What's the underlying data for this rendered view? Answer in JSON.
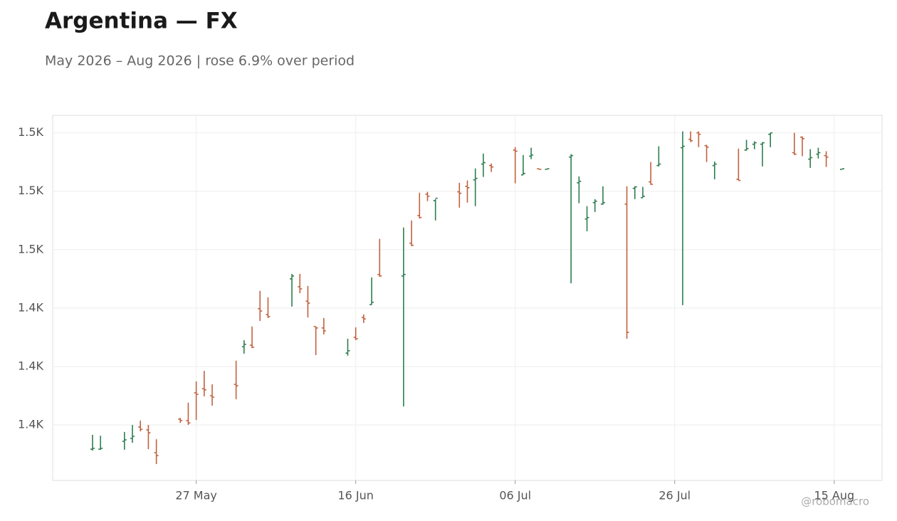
{
  "chart_data": {
    "type": "ohlc",
    "title": "Argentina — FX",
    "subtitle": "May 2026 – Aug 2026 | rose 6.9% over period",
    "watermark": "@robomacro",
    "up_color": "#2e7d4f",
    "down_color": "#c0623f",
    "grid": true,
    "x": [
      "2026-05-14",
      "2026-05-15",
      "2026-05-18",
      "2026-05-19",
      "2026-05-20",
      "2026-05-21",
      "2026-05-22",
      "2026-05-25",
      "2026-05-26",
      "2026-05-27",
      "2026-05-28",
      "2026-05-29",
      "2026-06-01",
      "2026-06-02",
      "2026-06-03",
      "2026-06-04",
      "2026-06-05",
      "2026-06-08",
      "2026-06-09",
      "2026-06-10",
      "2026-06-11",
      "2026-06-12",
      "2026-06-15",
      "2026-06-16",
      "2026-06-17",
      "2026-06-18",
      "2026-06-19",
      "2026-06-22",
      "2026-06-23",
      "2026-06-24",
      "2026-06-25",
      "2026-06-26",
      "2026-06-29",
      "2026-06-30",
      "2026-07-01",
      "2026-07-02",
      "2026-07-03",
      "2026-07-06",
      "2026-07-07",
      "2026-07-08",
      "2026-07-09",
      "2026-07-10",
      "2026-07-13",
      "2026-07-14",
      "2026-07-15",
      "2026-07-16",
      "2026-07-17",
      "2026-07-20",
      "2026-07-21",
      "2026-07-22",
      "2026-07-23",
      "2026-07-24",
      "2026-07-27",
      "2026-07-28",
      "2026-07-29",
      "2026-07-30",
      "2026-07-31",
      "2026-08-03",
      "2026-08-04",
      "2026-08-05",
      "2026-08-06",
      "2026-08-07",
      "2026-08-10",
      "2026-08-11",
      "2026-08-12",
      "2026-08-13",
      "2026-08-14",
      "2026-08-16"
    ],
    "open": [
      1391.7,
      1391.7,
      1394.4,
      1395.4,
      1399.3,
      1398.3,
      1390.5,
      1402.0,
      1401.5,
      1411.0,
      1412.4,
      1410.0,
      1413.9,
      1426.8,
      1427.3,
      1439.8,
      1437.8,
      1450.0,
      1447.3,
      1442.4,
      1433.7,
      1433.2,
      1424.6,
      1430.0,
      1436.8,
      1441.2,
      1451.5,
      1451.0,
      1462.2,
      1471.7,
      1479.0,
      1476.8,
      1479.8,
      1481.7,
      1483.9,
      1489.3,
      1488.8,
      1494.1,
      1485.6,
      1492.0,
      1487.7,
      1487.5,
      1491.7,
      1482.9,
      1470.5,
      1476.1,
      1475.6,
      1475.6,
      1481.0,
      1477.8,
      1483.2,
      1488.8,
      1494.9,
      1497.8,
      1500.0,
      1495.6,
      1488.8,
      1484.1,
      1494.1,
      1496.1,
      1496.1,
      1499.5,
      1493.2,
      1498.5,
      1491.0,
      1492.7,
      1492.2,
      1487.5
    ],
    "high": [
      1396.6,
      1396.3,
      1397.6,
      1400.0,
      1401.5,
      1400.0,
      1395.1,
      1402.4,
      1407.6,
      1414.9,
      1418.5,
      1413.9,
      1422.0,
      1429.0,
      1433.7,
      1445.9,
      1443.7,
      1451.7,
      1451.7,
      1447.6,
      1433.7,
      1436.6,
      1429.5,
      1433.4,
      1437.8,
      1450.5,
      1463.7,
      1467.6,
      1470.0,
      1479.5,
      1479.8,
      1477.3,
      1482.9,
      1483.7,
      1487.8,
      1492.9,
      1489.5,
      1495.1,
      1492.4,
      1494.9,
      1487.7,
      1487.7,
      1492.7,
      1485.1,
      1474.9,
      1477.3,
      1481.7,
      1481.7,
      1481.7,
      1481.5,
      1490.0,
      1495.4,
      1500.5,
      1500.5,
      1500.5,
      1495.9,
      1490.2,
      1494.6,
      1497.6,
      1497.1,
      1496.8,
      1500.0,
      1500.0,
      1498.8,
      1494.4,
      1494.9,
      1493.7,
      1487.7
    ],
    "low": [
      1391.2,
      1391.5,
      1391.5,
      1393.9,
      1397.8,
      1391.7,
      1386.6,
      1400.7,
      1400.0,
      1401.7,
      1409.8,
      1406.6,
      1408.8,
      1424.4,
      1426.3,
      1435.6,
      1436.6,
      1440.5,
      1445.1,
      1436.8,
      1423.9,
      1431.0,
      1423.7,
      1429.0,
      1434.9,
      1441.2,
      1450.7,
      1406.3,
      1461.2,
      1470.7,
      1476.6,
      1470.0,
      1474.4,
      1476.1,
      1474.9,
      1484.9,
      1486.6,
      1482.7,
      1485.6,
      1491.0,
      1487.5,
      1487.5,
      1448.5,
      1475.9,
      1466.3,
      1472.9,
      1475.4,
      1429.5,
      1477.3,
      1477.8,
      1482.2,
      1488.5,
      1441.0,
      1496.8,
      1495.1,
      1490.0,
      1484.1,
      1483.7,
      1493.9,
      1494.4,
      1488.5,
      1495.1,
      1492.4,
      1492.0,
      1488.0,
      1491.2,
      1488.3,
      1487.5
    ],
    "close": [
      1392.0,
      1392.0,
      1394.9,
      1396.1,
      1398.5,
      1397.3,
      1389.5,
      1401.5,
      1400.7,
      1410.5,
      1412.0,
      1409.5,
      1413.4,
      1427.6,
      1426.6,
      1439.0,
      1437.1,
      1451.0,
      1446.6,
      1441.7,
      1433.2,
      1432.2,
      1425.4,
      1429.5,
      1436.3,
      1442.0,
      1451.0,
      1451.5,
      1461.5,
      1471.0,
      1478.3,
      1477.6,
      1479.3,
      1481.2,
      1484.4,
      1489.8,
      1488.3,
      1493.7,
      1486.1,
      1492.4,
      1487.5,
      1487.7,
      1492.2,
      1483.4,
      1471.0,
      1476.6,
      1476.1,
      1431.7,
      1481.5,
      1478.3,
      1482.4,
      1489.3,
      1495.4,
      1497.3,
      1499.5,
      1495.1,
      1489.3,
      1483.7,
      1494.6,
      1496.6,
      1496.6,
      1500.0,
      1492.7,
      1498.0,
      1491.5,
      1493.2,
      1491.7,
      1487.7
    ],
    "xlim": [
      "2026-05-09",
      "2026-08-21"
    ],
    "xticks": [
      {
        "value": "2026-05-27",
        "label": "27 May"
      },
      {
        "value": "2026-06-16",
        "label": "16 Jun"
      },
      {
        "value": "2026-07-06",
        "label": "06 Jul"
      },
      {
        "value": "2026-07-26",
        "label": "26 Jul"
      },
      {
        "value": "2026-08-15",
        "label": "15 Aug"
      }
    ],
    "ylim": [
      1381,
      1506
    ],
    "yticks": [
      {
        "value": 1400,
        "label": "1.4K"
      },
      {
        "value": 1420,
        "label": "1.4K"
      },
      {
        "value": 1440,
        "label": "1.4K"
      },
      {
        "value": 1460,
        "label": "1.5K"
      },
      {
        "value": 1480,
        "label": "1.5K"
      },
      {
        "value": 1500,
        "label": "1.5K"
      }
    ]
  }
}
